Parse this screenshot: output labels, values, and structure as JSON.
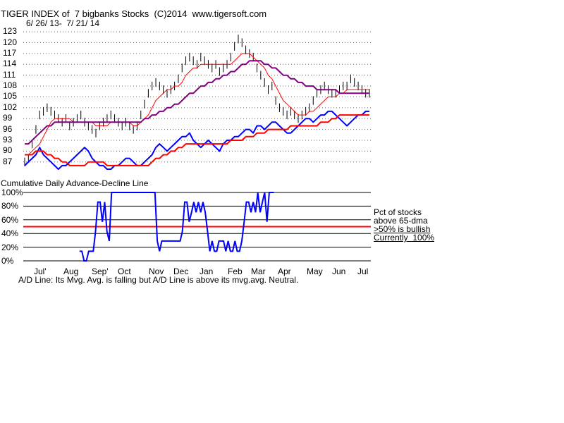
{
  "header": {
    "title": "TIGER INDEX of  7 bigbanks Stocks  (C)2014  www.tigersoft.com",
    "date_range": "6/ 26/ 13-  7/ 21/ 14"
  },
  "subchart": {
    "title": "Cumulative Daily Advance-Decline Line",
    "notes": [
      "Pct of stocks",
      "above 65-dma",
      ">50% is bullish",
      "Currently  100%"
    ]
  },
  "footer": {
    "text": "A/D Line: Its Mvg. Avg. is falling but A/D Line is above its mvg.avg. Neutral."
  },
  "colors": {
    "price": "#000000",
    "ma_short": "#ff0000",
    "ma_long": "#800080",
    "ad_line": "#0000ff",
    "ad_ma": "#ff0000",
    "pct_line": "#0000ff",
    "threshold_line": "#ff0000",
    "grid": "#00aa00"
  },
  "chart_data": [
    {
      "type": "line",
      "title": "TIGER INDEX of  7 bigbanks Stocks  (C)2014  www.tigersoft.com",
      "x_labels": [
        "Jul'",
        "Aug",
        "Sep'",
        "Oct",
        "Nov",
        "Dec",
        "Jan",
        "Feb",
        "Mar",
        "Apr",
        "May",
        "Jun",
        "Jul"
      ],
      "y_ticks": [
        87,
        90,
        93,
        96,
        99,
        102,
        105,
        108,
        111,
        114,
        117,
        120,
        123
      ],
      "ylim": [
        85,
        124
      ],
      "grid": "horizontal-dotted",
      "series": [
        {
          "name": "Price",
          "values": [
            87,
            88,
            92,
            96,
            100,
            101,
            102,
            101,
            100,
            99,
            98,
            99,
            97,
            98,
            99,
            100,
            98,
            97,
            96,
            95,
            97,
            98,
            99,
            100,
            99,
            98,
            97,
            98,
            97,
            96,
            97,
            100,
            103,
            106,
            108,
            109,
            108,
            107,
            106,
            107,
            108,
            110,
            113,
            115,
            116,
            115,
            114,
            116,
            115,
            114,
            113,
            114,
            112,
            113,
            114,
            116,
            119,
            121,
            120,
            118,
            117,
            116,
            113,
            111,
            109,
            107,
            108,
            104,
            102,
            101,
            100,
            101,
            100,
            99,
            100,
            101,
            102,
            104,
            106,
            107,
            108,
            107,
            106,
            106,
            107,
            108,
            108,
            110,
            109,
            108,
            107,
            106,
            106
          ]
        },
        {
          "values": [
            89,
            89,
            90,
            91,
            92,
            94,
            96,
            98,
            99,
            99,
            99,
            99,
            99,
            98,
            98,
            98,
            98,
            98,
            98,
            97,
            97,
            97,
            97,
            98,
            98,
            98,
            98,
            98,
            98,
            97,
            97,
            98,
            99,
            100,
            102,
            104,
            105,
            106,
            107,
            107,
            108,
            108,
            109,
            111,
            112,
            113,
            113,
            114,
            114,
            114,
            114,
            114,
            114,
            114,
            114,
            114,
            115,
            116,
            117,
            117,
            117,
            116,
            115,
            114,
            113,
            111,
            110,
            108,
            106,
            104,
            103,
            102,
            101,
            100,
            100,
            100,
            101,
            101,
            102,
            103,
            104,
            105,
            105,
            105,
            106,
            106,
            107,
            107,
            107,
            107,
            107,
            107,
            107
          ]
        },
        {
          "values": [
            92,
            92,
            93,
            94,
            95,
            96,
            97,
            97,
            98,
            98,
            98,
            98,
            98,
            98,
            98,
            98,
            98,
            98,
            98,
            98,
            98,
            98,
            98,
            98,
            98,
            98,
            98,
            98,
            98,
            98,
            98,
            98,
            99,
            99,
            100,
            100,
            101,
            101,
            102,
            102,
            103,
            103,
            104,
            105,
            106,
            106,
            107,
            108,
            108,
            109,
            109,
            110,
            110,
            111,
            111,
            112,
            112,
            113,
            114,
            114,
            115,
            115,
            115,
            115,
            114,
            114,
            113,
            113,
            112,
            111,
            111,
            110,
            110,
            109,
            109,
            108,
            108,
            108,
            107,
            107,
            107,
            107,
            107,
            107,
            106,
            106,
            106,
            106,
            106,
            106,
            106,
            106,
            106
          ]
        },
        {
          "values": [
            86,
            87,
            88,
            89,
            91,
            89,
            88,
            87,
            86,
            85,
            86,
            86,
            87,
            88,
            89,
            90,
            91,
            90,
            88,
            87,
            86,
            86,
            85,
            85,
            86,
            86,
            87,
            88,
            88,
            87,
            86,
            86,
            87,
            88,
            89,
            91,
            92,
            91,
            90,
            91,
            92,
            93,
            94,
            94,
            95,
            93,
            92,
            91,
            92,
            93,
            92,
            91,
            90,
            92,
            93,
            93,
            94,
            94,
            95,
            96,
            96,
            95,
            97,
            97,
            96,
            97,
            98,
            98,
            97,
            96,
            95,
            95,
            96,
            97,
            98,
            99,
            99,
            98,
            99,
            100,
            100,
            101,
            101,
            100,
            99,
            98,
            97,
            98,
            99,
            100,
            100,
            101,
            101
          ]
        },
        {
          "values": [
            89,
            89,
            89,
            90,
            90,
            90,
            89,
            89,
            88,
            88,
            87,
            87,
            86,
            86,
            86,
            86,
            86,
            87,
            87,
            87,
            87,
            87,
            86,
            86,
            86,
            86,
            86,
            86,
            86,
            86,
            86,
            86,
            86,
            86,
            87,
            88,
            88,
            89,
            89,
            90,
            90,
            91,
            91,
            92,
            92,
            92,
            92,
            92,
            92,
            92,
            92,
            92,
            92,
            92,
            92,
            93,
            93,
            93,
            93,
            94,
            94,
            94,
            95,
            95,
            95,
            96,
            96,
            96,
            96,
            96,
            96,
            97,
            97,
            97,
            97,
            97,
            97,
            97,
            97,
            98,
            98,
            98,
            99,
            99,
            100,
            100,
            100,
            100,
            100,
            100,
            100,
            100,
            100
          ]
        }
      ]
    },
    {
      "type": "line",
      "title": "Cumulative Daily Advance-Decline Line",
      "x_labels": [
        "Jul'",
        "Aug",
        "Sep'",
        "Oct",
        "Nov",
        "Dec",
        "Jan",
        "Feb",
        "Mar",
        "Apr",
        "May",
        "Jun",
        "Jul"
      ],
      "y_ticks": [
        "0%",
        "20%",
        "40%",
        "60%",
        "80%",
        "100%"
      ],
      "ylim": [
        0,
        100
      ],
      "threshold": 50,
      "series": [
        {
          "name": "Pct of stocks above 65-dma",
          "x_start_index": 24,
          "values": [
            14,
            14,
            0,
            0,
            14,
            14,
            14,
            43,
            86,
            86,
            57,
            86,
            43,
            29,
            100,
            100,
            100,
            100,
            100,
            100,
            100,
            100,
            100,
            100,
            100,
            100,
            100,
            100,
            100,
            100,
            100,
            100,
            100,
            100,
            29,
            14,
            29,
            29,
            29,
            29,
            29,
            29,
            29,
            29,
            29,
            43,
            86,
            86,
            57,
            71,
            86,
            71,
            86,
            71,
            86,
            71,
            43,
            14,
            29,
            14,
            14,
            29,
            29,
            29,
            14,
            29,
            14,
            14,
            29,
            14,
            14,
            29,
            57,
            86,
            86,
            71,
            86,
            71,
            100,
            71,
            86,
            100,
            57,
            100,
            100,
            100
          ]
        }
      ]
    }
  ]
}
